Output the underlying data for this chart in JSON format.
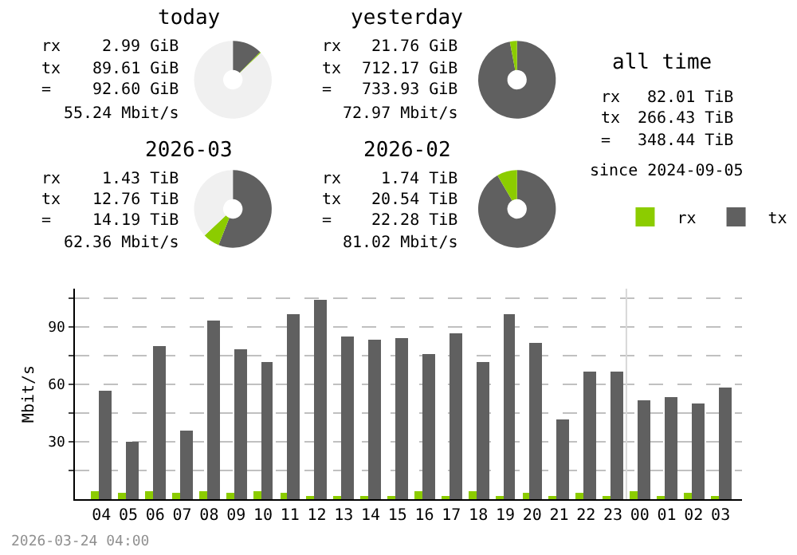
{
  "chart_data": [
    {
      "type": "donut",
      "title": "today",
      "categories": [
        null,
        null,
        null
      ],
      "values": [
        12.4,
        0.4,
        87.2
      ],
      "colors": [
        "#606060",
        "#8ccc00",
        "#f0f0f0"
      ],
      "annotations": [
        "rx",
        "2.99 GiB",
        "tx",
        "89.61 GiB",
        "=",
        "92.60 GiB",
        "55.24 Mbit/s"
      ]
    },
    {
      "type": "donut",
      "title": "yesterday",
      "categories": [
        null,
        null
      ],
      "values": [
        97.04,
        2.96
      ],
      "colors": [
        "#606060",
        "#8ccc00"
      ],
      "annotations": [
        "rx",
        "21.76 GiB",
        "tx",
        "712.17 GiB",
        "=",
        "733.93 GiB",
        "72.97 Mbit/s"
      ]
    },
    {
      "type": "other",
      "title": "all time",
      "annotations": [
        "rx",
        "82.01 TiB",
        "tx",
        "266.43 TiB",
        "=",
        "348.44 TiB",
        "since 2024-09-05"
      ]
    },
    {
      "type": "donut",
      "title": "2026-03",
      "categories": [
        null,
        null,
        null
      ],
      "values": [
        56,
        7,
        37
      ],
      "colors": [
        "#606060",
        "#8ccc00",
        "#f0f0f0"
      ],
      "annotations": [
        "rx",
        "1.43 TiB",
        "tx",
        "12.76 TiB",
        "=",
        "14.19 TiB",
        "62.36 Mbit/s"
      ]
    },
    {
      "type": "donut",
      "title": "2026-02",
      "categories": [
        null,
        null
      ],
      "values": [
        91.6,
        8.4
      ],
      "colors": [
        "#606060",
        "#8ccc00"
      ],
      "annotations": [
        "rx",
        "1.74 TiB",
        "tx",
        "20.54 TiB",
        "=",
        "22.28 TiB",
        "81.02 Mbit/s"
      ]
    },
    {
      "type": "bar",
      "ylabel": "Mbit/s",
      "categories": [
        "04",
        "05",
        "06",
        "07",
        "08",
        "09",
        "10",
        "11",
        "12",
        "13",
        "14",
        "15",
        "16",
        "17",
        "18",
        "19",
        "20",
        "21",
        "22",
        "23",
        "00",
        "01",
        "02",
        "03"
      ],
      "series": [
        {
          "name": "rx",
          "color": "#8ccc00",
          "values": [
            4,
            3,
            4,
            3,
            4,
            3,
            4,
            3,
            2,
            1,
            2,
            2,
            4,
            2,
            4,
            2,
            3,
            1,
            3,
            1,
            4,
            1,
            3,
            1
          ]
        },
        {
          "name": "tx",
          "color": "#606060",
          "values": [
            57,
            30,
            80,
            36,
            93,
            78,
            72,
            97,
            104,
            85,
            83,
            84,
            76,
            87,
            72,
            97,
            82,
            42,
            67,
            67,
            52,
            53,
            50,
            58
          ]
        }
      ],
      "ylim": [
        0,
        110
      ],
      "yticks": [
        {
          "value": 15,
          "label": null
        },
        30,
        {
          "value": 45,
          "label": null
        },
        60,
        {
          "value": 75,
          "label": null
        },
        90,
        {
          "value": 105,
          "label": null
        }
      ],
      "grid": "y",
      "legend": "top right",
      "ref_lines": [
        {
          "axis": "x",
          "value": "00",
          "color": "#d8d8d8"
        }
      ],
      "annotations": [
        "2026-03-24 04:00"
      ]
    }
  ]
}
